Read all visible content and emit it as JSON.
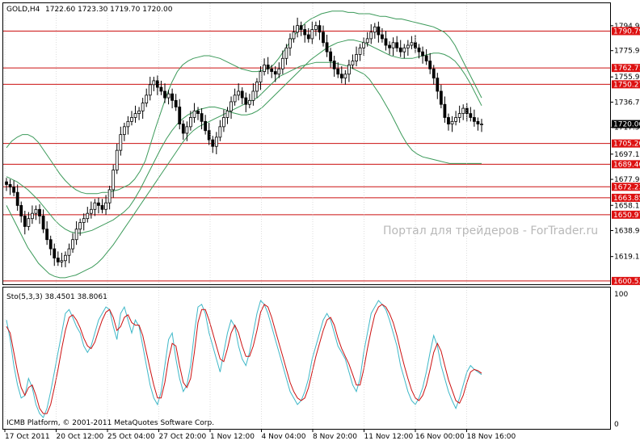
{
  "colors": {
    "background": "#ffffff",
    "candle": "#000000",
    "bands": "#3c9a5a",
    "level_line": "#cc1111",
    "level_label_bg": "#dd1111",
    "level_label_text": "#ffffff",
    "stoch_main": "#3fb8c8",
    "stoch_signal": "#cc1111",
    "grid": "#c8c8c8",
    "watermark": "#b8b8b8"
  },
  "header": {
    "symbol_timeframe": "GOLD,H4",
    "ohlc": "1722.60 1723.30 1719.70 1720.00"
  },
  "watermark": "Портал для трейдеров - ForTrader.ru",
  "copyright": "ICMB Platform, © 2001-2011 MetaQuotes Software Corp.",
  "indicator": {
    "label": "Sto(5,3,3) 38.4501 38.8061",
    "scale_top": "100",
    "scale_bottom": "0"
  },
  "chart_data": {
    "type": "candlestick",
    "symbol": "GOLD",
    "timeframe": "H4",
    "price_axis": {
      "ticks": [
        "1794.90",
        "1775.90",
        "1755.90",
        "1736.70",
        "1717.50",
        "1697.10",
        "1677.90",
        "1658.10",
        "1638.90",
        "1619.10"
      ],
      "ylim": [
        1598,
        1812
      ]
    },
    "current_price": "1720.00",
    "levels": [
      "1790.79",
      "1762.71",
      "1750.27",
      "1705.20",
      "1689.40",
      "1672.23",
      "1663.85",
      "1650.97",
      "1600.53"
    ],
    "time_axis": [
      "17 Oct 2011",
      "20 Oct 12:00",
      "25 Oct 04:00",
      "27 Oct 20:00",
      "1 Nov 12:00",
      "4 Nov 04:00",
      "8 Nov 20:00",
      "11 Nov 12:00",
      "16 Nov 00:00",
      "18 Nov 16:00"
    ],
    "close": [
      1674,
      1672,
      1668,
      1658,
      1650,
      1642,
      1648,
      1652,
      1655,
      1650,
      1640,
      1632,
      1625,
      1618,
      1615,
      1616,
      1620,
      1625,
      1632,
      1640,
      1645,
      1648,
      1652,
      1655,
      1660,
      1658,
      1655,
      1660,
      1670,
      1685,
      1700,
      1712,
      1718,
      1722,
      1725,
      1728,
      1730,
      1736,
      1742,
      1750,
      1753,
      1748,
      1745,
      1740,
      1743,
      1738,
      1733,
      1720,
      1713,
      1718,
      1725,
      1730,
      1728,
      1722,
      1715,
      1708,
      1703,
      1710,
      1718,
      1725,
      1730,
      1737,
      1742,
      1745,
      1740,
      1735,
      1738,
      1745,
      1752,
      1760,
      1765,
      1762,
      1760,
      1758,
      1762,
      1770,
      1778,
      1785,
      1790,
      1795,
      1792,
      1788,
      1785,
      1792,
      1795,
      1790,
      1782,
      1775,
      1768,
      1762,
      1758,
      1755,
      1758,
      1765,
      1768,
      1773,
      1778,
      1782,
      1785,
      1790,
      1794,
      1788,
      1785,
      1780,
      1778,
      1782,
      1778,
      1775,
      1778,
      1780,
      1782,
      1778,
      1775,
      1772,
      1768,
      1762,
      1755,
      1745,
      1735,
      1725,
      1720,
      1722,
      1725,
      1728,
      1732,
      1728,
      1725,
      1722,
      1720,
      1720
    ],
    "bands": {
      "period_note": "",
      "upper": [
        1702,
        1707,
        1710,
        1712,
        1712,
        1710,
        1706,
        1700,
        1694,
        1688,
        1682,
        1677,
        1673,
        1670,
        1668,
        1667,
        1667,
        1667,
        1668,
        1668,
        1669,
        1670,
        1672,
        1674,
        1678,
        1684,
        1692,
        1705,
        1718,
        1730,
        1742,
        1752,
        1760,
        1765,
        1768,
        1770,
        1771,
        1772,
        1772,
        1771,
        1770,
        1768,
        1766,
        1764,
        1762,
        1761,
        1760,
        1760,
        1761,
        1762,
        1765,
        1770,
        1776,
        1782,
        1788,
        1793,
        1797,
        1800,
        1802,
        1804,
        1805,
        1806,
        1806,
        1806,
        1805,
        1805,
        1804,
        1804,
        1804,
        1803,
        1802,
        1802,
        1801,
        1800,
        1800,
        1799,
        1798,
        1797,
        1796,
        1795,
        1794,
        1792,
        1790,
        1786,
        1780,
        1772,
        1764,
        1756,
        1748,
        1740
      ],
      "middle": [
        1680,
        1678,
        1676,
        1673,
        1670,
        1666,
        1662,
        1657,
        1652,
        1647,
        1643,
        1640,
        1638,
        1637,
        1637,
        1638,
        1639,
        1641,
        1643,
        1645,
        1647,
        1650,
        1653,
        1657,
        1663,
        1670,
        1678,
        1686,
        1694,
        1702,
        1709,
        1715,
        1720,
        1724,
        1727,
        1729,
        1731,
        1732,
        1733,
        1733,
        1732,
        1731,
        1729,
        1728,
        1727,
        1727,
        1728,
        1730,
        1733,
        1737,
        1741,
        1745,
        1749,
        1753,
        1757,
        1761,
        1765,
        1769,
        1772,
        1775,
        1778,
        1780,
        1782,
        1783,
        1784,
        1784,
        1783,
        1782,
        1780,
        1778,
        1776,
        1774,
        1772,
        1771,
        1770,
        1770,
        1770,
        1771,
        1772,
        1773,
        1774,
        1774,
        1773,
        1771,
        1768,
        1763,
        1757,
        1750,
        1742,
        1734
      ],
      "lower": [
        1658,
        1650,
        1642,
        1634,
        1626,
        1620,
        1614,
        1610,
        1606,
        1604,
        1603,
        1603,
        1604,
        1605,
        1607,
        1609,
        1611,
        1614,
        1618,
        1623,
        1628,
        1634,
        1640,
        1646,
        1652,
        1658,
        1664,
        1670,
        1676,
        1682,
        1688,
        1694,
        1700,
        1706,
        1711,
        1715,
        1718,
        1720,
        1722,
        1724,
        1726,
        1728,
        1730,
        1732,
        1734,
        1736,
        1738,
        1740,
        1744,
        1748,
        1752,
        1756,
        1758,
        1760,
        1762,
        1764,
        1765,
        1766,
        1767,
        1767,
        1767,
        1767,
        1766,
        1765,
        1764,
        1762,
        1760,
        1758,
        1754,
        1748,
        1742,
        1735,
        1728,
        1720,
        1712,
        1705,
        1700,
        1697,
        1695,
        1694,
        1693,
        1692,
        1691,
        1690,
        1690,
        1690,
        1690,
        1690,
        1690,
        1690
      ]
    },
    "stochastic": {
      "ylim": [
        0,
        100
      ],
      "main": [
        80,
        65,
        45,
        30,
        20,
        22,
        35,
        28,
        15,
        8,
        5,
        12,
        25,
        40,
        55,
        70,
        85,
        88,
        82,
        75,
        70,
        60,
        55,
        60,
        70,
        80,
        85,
        90,
        88,
        75,
        65,
        85,
        90,
        80,
        70,
        80,
        75,
        60,
        45,
        30,
        20,
        15,
        25,
        45,
        65,
        70,
        50,
        35,
        25,
        30,
        45,
        70,
        90,
        92,
        85,
        70,
        60,
        50,
        40,
        55,
        70,
        80,
        75,
        60,
        50,
        45,
        55,
        70,
        85,
        95,
        92,
        85,
        75,
        65,
        55,
        45,
        35,
        25,
        20,
        15,
        18,
        25,
        35,
        50,
        60,
        70,
        80,
        85,
        80,
        70,
        60,
        55,
        50,
        40,
        30,
        25,
        35,
        55,
        70,
        85,
        90,
        95,
        92,
        88,
        80,
        70,
        60,
        45,
        35,
        25,
        18,
        15,
        20,
        28,
        40,
        55,
        68,
        60,
        45,
        35,
        25,
        18,
        12,
        20,
        30,
        40,
        45,
        42,
        40,
        38
      ],
      "signal": [
        75,
        70,
        55,
        40,
        28,
        22,
        28,
        30,
        22,
        12,
        8,
        8,
        15,
        28,
        42,
        58,
        72,
        82,
        84,
        80,
        74,
        66,
        60,
        58,
        63,
        72,
        80,
        86,
        88,
        82,
        72,
        75,
        82,
        84,
        78,
        76,
        76,
        68,
        55,
        42,
        30,
        20,
        20,
        32,
        50,
        62,
        60,
        45,
        32,
        28,
        35,
        55,
        78,
        88,
        88,
        80,
        70,
        60,
        50,
        48,
        58,
        70,
        76,
        70,
        60,
        52,
        52,
        60,
        72,
        86,
        92,
        90,
        82,
        72,
        62,
        52,
        42,
        32,
        25,
        20,
        18,
        20,
        28,
        40,
        52,
        62,
        72,
        80,
        82,
        76,
        66,
        58,
        52,
        46,
        38,
        30,
        30,
        42,
        58,
        72,
        84,
        90,
        92,
        90,
        85,
        78,
        68,
        56,
        45,
        35,
        26,
        20,
        18,
        22,
        30,
        42,
        55,
        62,
        56,
        45,
        34,
        26,
        18,
        16,
        22,
        32,
        40,
        42,
        41,
        39
      ]
    }
  }
}
